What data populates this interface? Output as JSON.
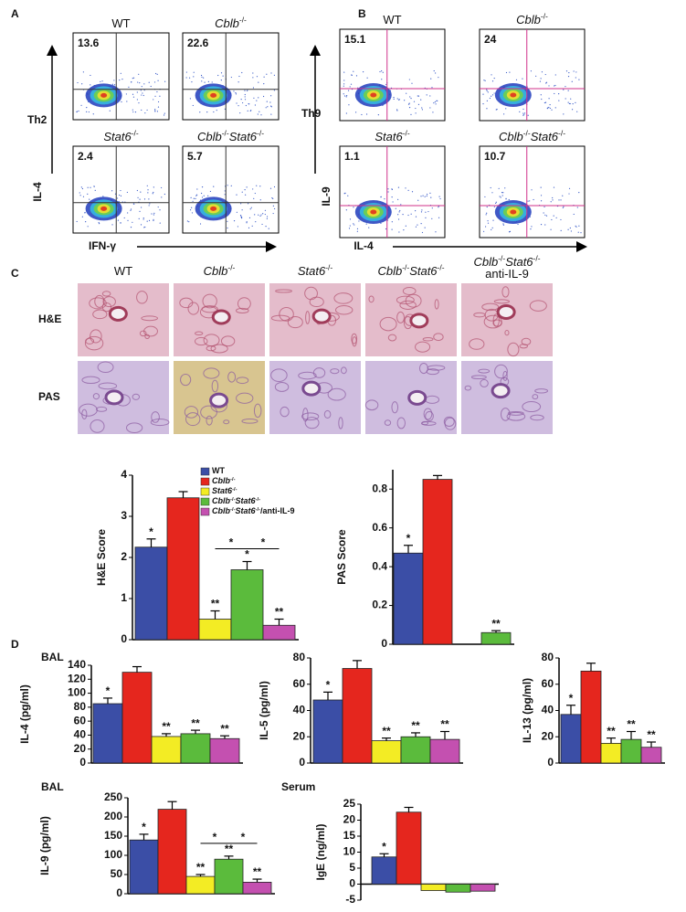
{
  "panels": [
    "A",
    "B",
    "C",
    "D"
  ],
  "flow": [
    {
      "row_label": "Th2",
      "y_label": "IL-4",
      "x_label": "IFN-γ",
      "plots": [
        {
          "title": "WT",
          "value": 13.6
        },
        {
          "title": "Cblb-/-",
          "value": 22.6
        },
        {
          "title": "Stat6-/-",
          "value": 2.4
        },
        {
          "title": "Cblb-/-Stat6-/-",
          "value": 5.7
        }
      ]
    },
    {
      "row_label": "Th9",
      "y_label": "IL-9",
      "x_label": "IL-4",
      "plots": [
        {
          "title": "WT",
          "value": 15.1
        },
        {
          "title": "Cblb-/-",
          "value": 24
        },
        {
          "title": "Stat6-/-",
          "value": 1.1
        },
        {
          "title": "Cblb-/-Stat6-/-",
          "value": 10.7
        }
      ]
    }
  ],
  "histology": {
    "columns": [
      [
        "WT"
      ],
      [
        "Cblb-/-"
      ],
      [
        "Stat6-/-"
      ],
      [
        "Cblb-/-Stat6-/-"
      ],
      [
        "Cblb-/-Stat6-/-",
        "anti-IL-9"
      ]
    ],
    "rows": [
      "H&E",
      "PAS"
    ]
  },
  "section_labels": [
    "BAL",
    "BAL",
    "Serum"
  ],
  "legend": [
    {
      "name": "WT",
      "color": "#3b4ea6"
    },
    {
      "name": "Cblb-/-",
      "color": "#e5261e"
    },
    {
      "name": "Stat6-/-",
      "color": "#f3ec24"
    },
    {
      "name": "Cblb-/-Stat6-/-",
      "color": "#5bbb3c"
    },
    {
      "name": "Cblb-/-Stat6-/-/anti-IL-9",
      "color": "#c450b0"
    }
  ],
  "chart_data": [
    {
      "type": "bar",
      "ylabel": "H&E Score",
      "ylim": [
        0,
        4
      ],
      "yticks": [
        0,
        1,
        2,
        3,
        4
      ],
      "values": [
        2.25,
        3.45,
        0.5,
        1.7,
        0.35
      ],
      "errors": [
        0.2,
        0.15,
        0.2,
        0.2,
        0.15
      ],
      "markers": [
        "*",
        null,
        "**",
        "*",
        "**"
      ],
      "comparisons": [
        {
          "from": 2,
          "to": 3,
          "text": "*"
        },
        {
          "from": 3,
          "to": 4,
          "text": "*"
        }
      ]
    },
    {
      "type": "bar",
      "ylabel": "PAS Score",
      "ylim": [
        0,
        0.9
      ],
      "yticks": [
        0,
        0.2,
        0.4,
        0.6,
        0.8
      ],
      "values": [
        0.47,
        0.85,
        null,
        0.06
      ],
      "errors": [
        0.04,
        0.02,
        null,
        0.01
      ],
      "markers": [
        "*",
        null,
        null,
        "**"
      ]
    },
    {
      "type": "bar",
      "ylabel": "IL-4 (pg/ml)",
      "ylim": [
        0,
        140
      ],
      "yticks": [
        0,
        20,
        40,
        60,
        80,
        100,
        120,
        140
      ],
      "values": [
        85,
        130,
        38,
        42,
        35
      ],
      "errors": [
        8,
        8,
        4,
        5,
        4
      ],
      "markers": [
        "*",
        null,
        "**",
        "**",
        "**"
      ]
    },
    {
      "type": "bar",
      "ylabel": "IL-5 (pg/ml)",
      "ylim": [
        0,
        80
      ],
      "yticks": [
        0,
        20,
        40,
        60,
        80
      ],
      "values": [
        48,
        72,
        17,
        20,
        18
      ],
      "errors": [
        6,
        6,
        2,
        3,
        6
      ],
      "markers": [
        "*",
        null,
        "**",
        "**",
        "**"
      ]
    },
    {
      "type": "bar",
      "ylabel": "IL-13 (pg/ml)",
      "ylim": [
        0,
        80
      ],
      "yticks": [
        0,
        20,
        40,
        60,
        80
      ],
      "values": [
        37,
        70,
        15,
        18,
        12
      ],
      "errors": [
        7,
        6,
        4,
        6,
        4
      ],
      "markers": [
        "*",
        null,
        "**",
        "**",
        "**"
      ]
    },
    {
      "type": "bar",
      "ylabel": "IL-9 (pg/ml)",
      "ylim": [
        0,
        250
      ],
      "yticks": [
        0,
        50,
        100,
        150,
        200,
        250
      ],
      "values": [
        140,
        220,
        45,
        90,
        30
      ],
      "errors": [
        15,
        20,
        5,
        8,
        8
      ],
      "markers": [
        "*",
        null,
        "**",
        "**",
        "**"
      ],
      "comparisons": [
        {
          "from": 2,
          "to": 3,
          "text": "*"
        },
        {
          "from": 3,
          "to": 4,
          "text": "*"
        }
      ]
    },
    {
      "type": "bar",
      "ylabel": "IgE (ng/ml)",
      "ylim": [
        -5,
        25
      ],
      "yticks": [
        -5,
        0,
        5,
        10,
        15,
        20,
        25
      ],
      "values": [
        8.5,
        22.5,
        -2,
        -2.5,
        -2.2
      ],
      "errors": [
        1,
        1.5,
        null,
        null,
        null
      ],
      "markers": [
        "*",
        null,
        null,
        null,
        null
      ]
    }
  ]
}
